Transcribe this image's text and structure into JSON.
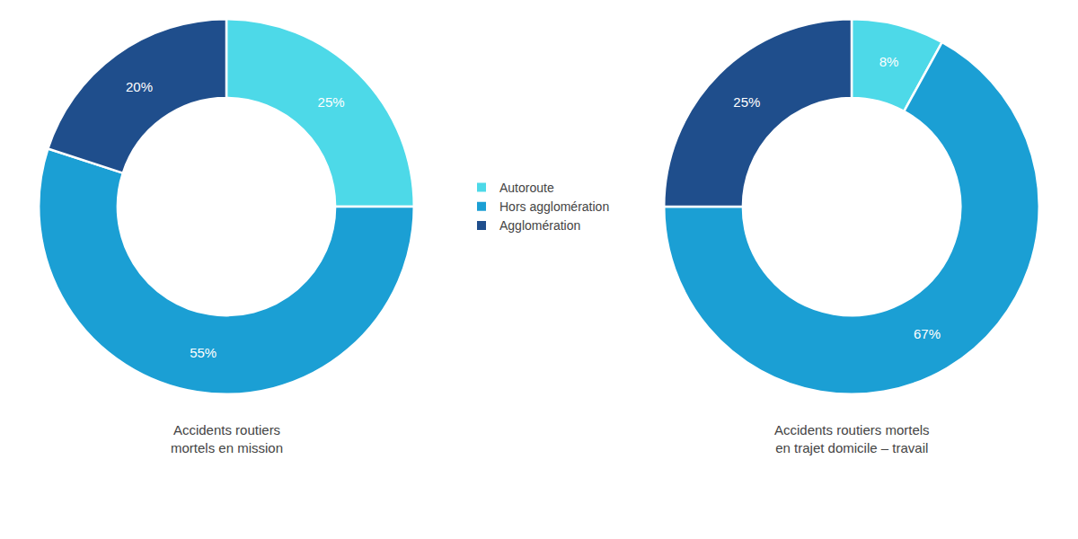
{
  "chart_data": [
    {
      "type": "pie",
      "title": "Accidents routiers\nmortels en mission",
      "categories": [
        "Autoroute",
        "Hors agglomération",
        "Agglomération"
      ],
      "values": [
        25,
        55,
        20
      ],
      "value_labels": [
        "25%",
        "55%",
        "20%"
      ],
      "colors": [
        "#4DD9E8",
        "#1B9FD4",
        "#1F4E8C"
      ],
      "data_labels": true,
      "legend": "center"
    },
    {
      "type": "pie",
      "title": "Accidents routiers mortels\nen trajet domicile – travail",
      "categories": [
        "Autoroute",
        "Hors agglomération",
        "Agglomération"
      ],
      "values": [
        8,
        67,
        25
      ],
      "value_labels": [
        "8%",
        "67%",
        "25%"
      ],
      "colors": [
        "#4DD9E8",
        "#1B9FD4",
        "#1F4E8C"
      ],
      "data_labels": true,
      "legend": "center"
    }
  ]
}
